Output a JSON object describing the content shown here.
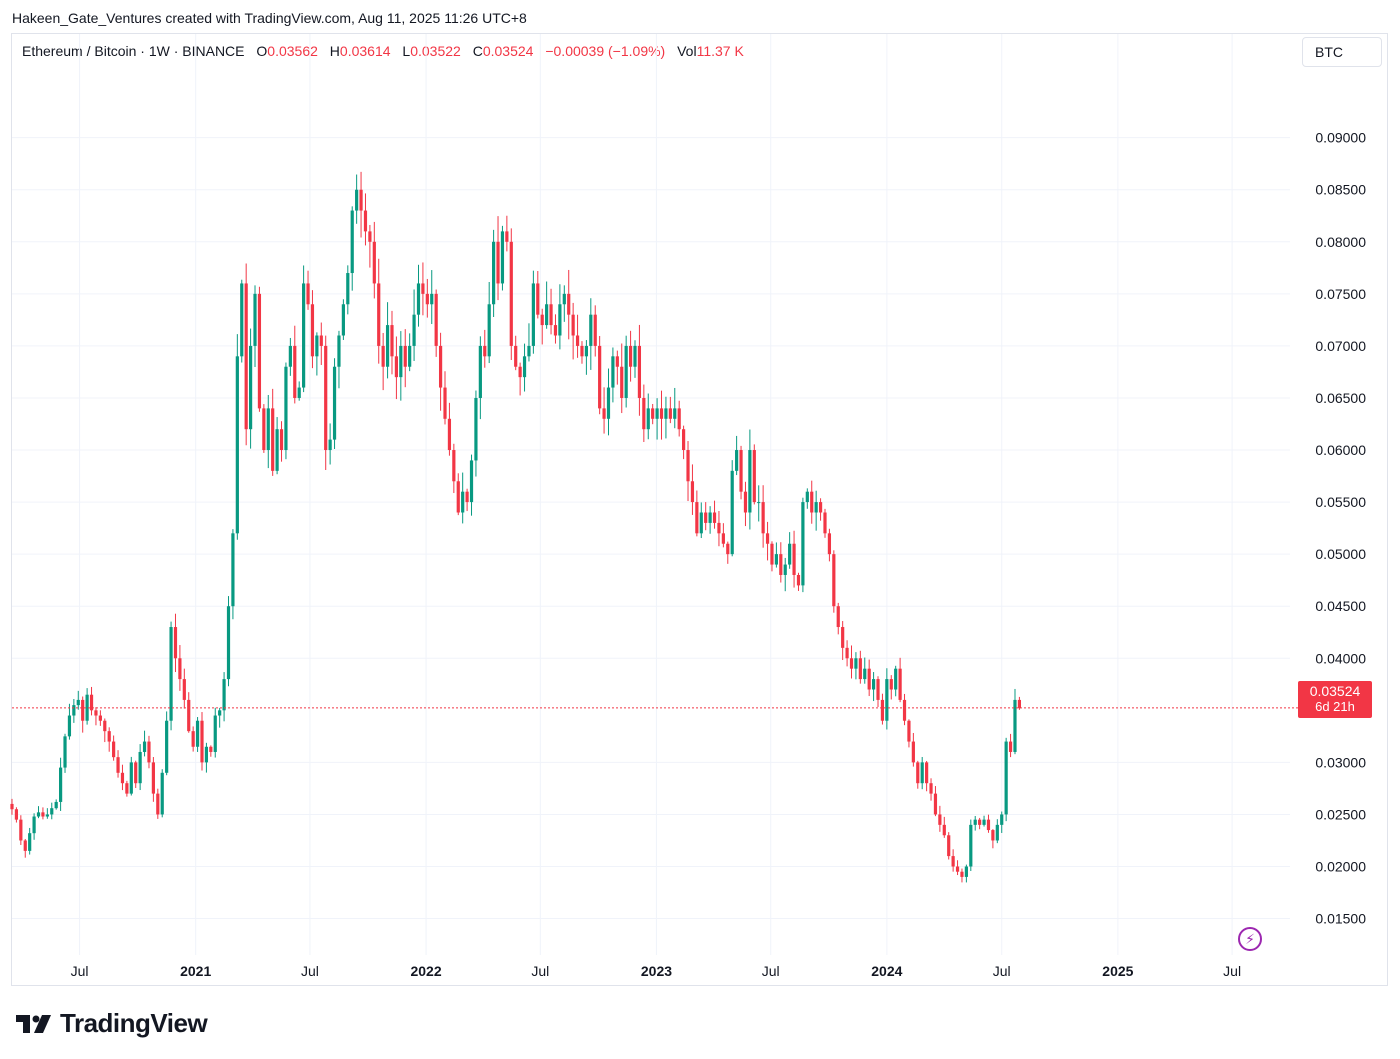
{
  "attribution": "Hakeen_Gate_Ventures created with TradingView.com, Aug 11, 2025 11:26 UTC+8",
  "legend": {
    "symbol": "Ethereum / Bitcoin · 1W · BINANCE",
    "open_label": "O",
    "open": "0.03562",
    "high_label": "H",
    "high": "0.03614",
    "low_label": "L",
    "low": "0.03522",
    "close_label": "C",
    "close": "0.03524",
    "change": "−0.00039 (−1.09%)",
    "vol_label": "Vol",
    "vol": "11.37 K"
  },
  "currency_button": "BTC",
  "last_price": {
    "value": "0.03524",
    "countdown": "6d 21h"
  },
  "brand": "TradingView",
  "colors": {
    "up": "#089981",
    "down": "#f23645",
    "grid": "#f0f3fa",
    "text": "#131722"
  },
  "icons": {
    "flash": "flash-icon",
    "logo": "tradingview-logo-icon"
  },
  "chart_data": {
    "type": "candlestick",
    "interval": "1W",
    "y_ticks": [
      "0.09000",
      "0.08500",
      "0.08000",
      "0.07500",
      "0.07000",
      "0.06500",
      "0.06000",
      "0.05500",
      "0.05000",
      "0.04500",
      "0.04000",
      "0.03000",
      "0.02500",
      "0.02000",
      "0.01500"
    ],
    "ylim": [
      0.0115,
      0.0965
    ],
    "x_ticks": [
      {
        "label": "Jul",
        "date": "2020-07-01",
        "bold": false
      },
      {
        "label": "2021",
        "date": "2021-01-01",
        "bold": true
      },
      {
        "label": "Jul",
        "date": "2021-07-01",
        "bold": false
      },
      {
        "label": "2022",
        "date": "2022-01-01",
        "bold": true
      },
      {
        "label": "Jul",
        "date": "2022-07-01",
        "bold": false
      },
      {
        "label": "2023",
        "date": "2023-01-01",
        "bold": true
      },
      {
        "label": "Jul",
        "date": "2023-07-01",
        "bold": false
      },
      {
        "label": "2024",
        "date": "2024-01-01",
        "bold": true
      },
      {
        "label": "Jul",
        "date": "2024-07-01",
        "bold": false
      },
      {
        "label": "2025",
        "date": "2025-01-01",
        "bold": true
      },
      {
        "label": "Jul",
        "date": "2025-07-01",
        "bold": false
      }
    ],
    "xlim": [
      "2020-03-16",
      "2025-08-11"
    ],
    "close_series": [
      0.0255,
      0.0245,
      0.0225,
      0.0215,
      0.0232,
      0.0248,
      0.0252,
      0.0248,
      0.025,
      0.0256,
      0.0262,
      0.0295,
      0.0325,
      0.0345,
      0.0355,
      0.036,
      0.034,
      0.0365,
      0.035,
      0.0345,
      0.034,
      0.033,
      0.032,
      0.0305,
      0.029,
      0.028,
      0.027,
      0.03,
      0.028,
      0.031,
      0.032,
      0.03,
      0.027,
      0.025,
      0.029,
      0.034,
      0.043,
      0.04,
      0.038,
      0.036,
      0.033,
      0.0315,
      0.034,
      0.03,
      0.0315,
      0.031,
      0.0345,
      0.035,
      0.038,
      0.045,
      0.052,
      0.069,
      0.076,
      0.062,
      0.07,
      0.075,
      0.064,
      0.06,
      0.064,
      0.058,
      0.062,
      0.06,
      0.068,
      0.07,
      0.065,
      0.066,
      0.076,
      0.074,
      0.069,
      0.071,
      0.07,
      0.06,
      0.061,
      0.068,
      0.071,
      0.074,
      0.077,
      0.083,
      0.085,
      0.083,
      0.081,
      0.08,
      0.076,
      0.07,
      0.068,
      0.072,
      0.069,
      0.067,
      0.07,
      0.068,
      0.07,
      0.073,
      0.076,
      0.075,
      0.074,
      0.075,
      0.07,
      0.066,
      0.063,
      0.06,
      0.057,
      0.054,
      0.056,
      0.055,
      0.059,
      0.065,
      0.07,
      0.069,
      0.074,
      0.08,
      0.076,
      0.081,
      0.08,
      0.07,
      0.068,
      0.067,
      0.069,
      0.07,
      0.076,
      0.073,
      0.072,
      0.074,
      0.072,
      0.071,
      0.074,
      0.075,
      0.073,
      0.071,
      0.07,
      0.069,
      0.07,
      0.073,
      0.07,
      0.064,
      0.063,
      0.066,
      0.069,
      0.068,
      0.065,
      0.07,
      0.068,
      0.07,
      0.065,
      0.062,
      0.064,
      0.063,
      0.064,
      0.063,
      0.064,
      0.063,
      0.064,
      0.062,
      0.06,
      0.057,
      0.055,
      0.052,
      0.054,
      0.053,
      0.054,
      0.053,
      0.052,
      0.051,
      0.05,
      0.058,
      0.06,
      0.056,
      0.054,
      0.06,
      0.055,
      0.055,
      0.052,
      0.051,
      0.049,
      0.05,
      0.048,
      0.049,
      0.051,
      0.048,
      0.047,
      0.055,
      0.056,
      0.054,
      0.055,
      0.054,
      0.052,
      0.05,
      0.045,
      0.043,
      0.041,
      0.04,
      0.039,
      0.04,
      0.038,
      0.039,
      0.037,
      0.038,
      0.036,
      0.034,
      0.038,
      0.037,
      0.039,
      0.036,
      0.034,
      0.032,
      0.03,
      0.028,
      0.03,
      0.028,
      0.027,
      0.025,
      0.024,
      0.023,
      0.021,
      0.02,
      0.0195,
      0.019,
      0.02,
      0.024,
      0.0245,
      0.024,
      0.0245,
      0.0235,
      0.0225,
      0.024,
      0.025,
      0.032,
      0.031,
      0.036,
      0.0352
    ]
  }
}
